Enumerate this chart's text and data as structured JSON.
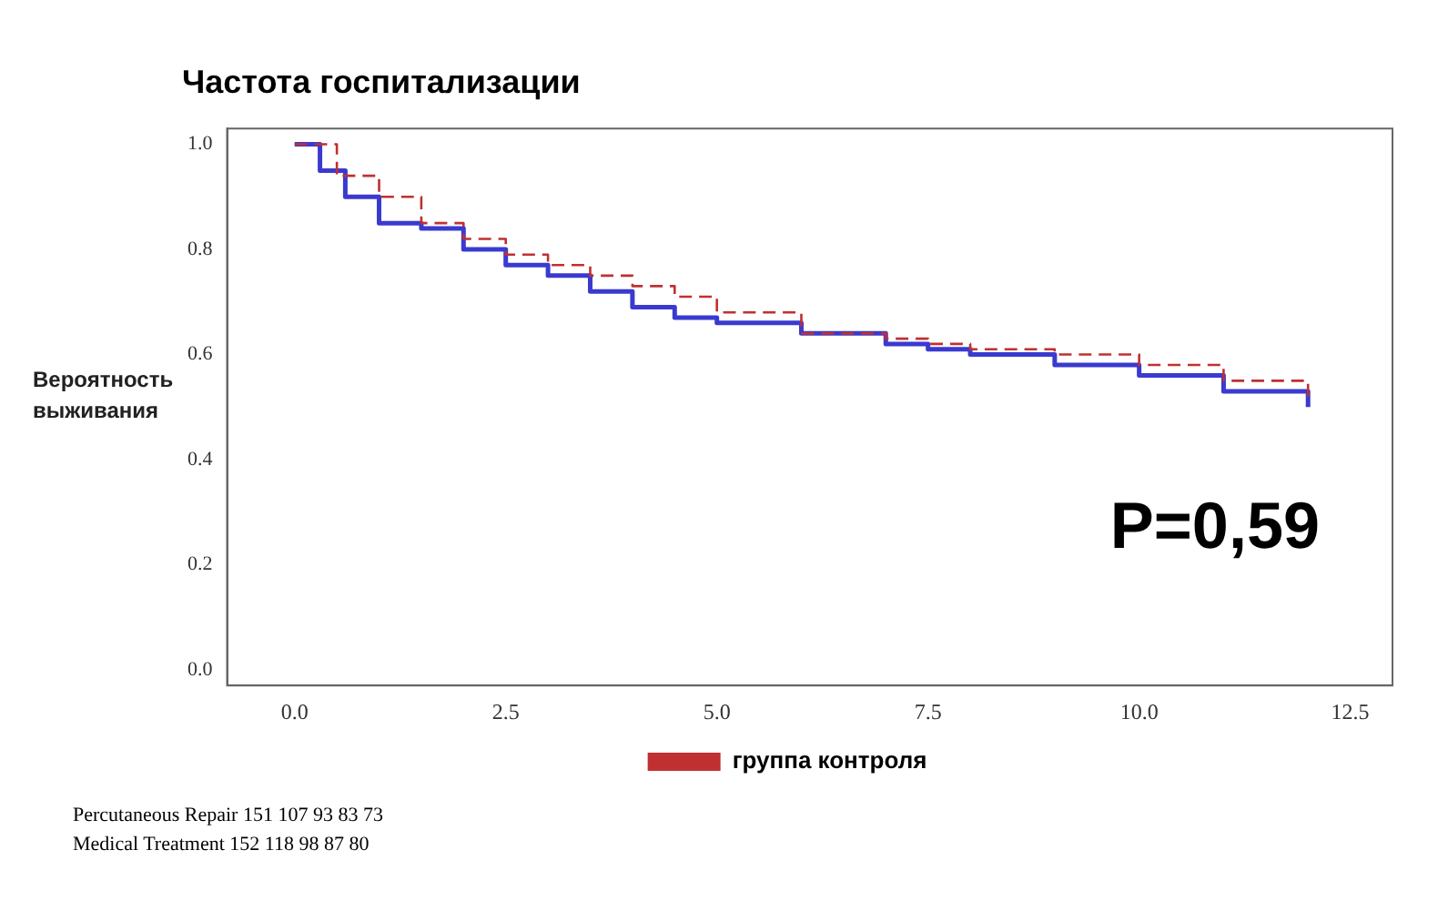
{
  "chart_data": {
    "type": "step",
    "title": "Частота госпитализации",
    "ylabel": "Вероятность выживания",
    "xlim": [
      -0.8,
      13
    ],
    "ylim": [
      -0.03,
      1.03
    ],
    "xticks": [
      {
        "value": 0,
        "label": "0.0"
      },
      {
        "value": 2.5,
        "label": "2.5"
      },
      {
        "value": 5,
        "label": "5.0"
      },
      {
        "value": 7.5,
        "label": "7.5"
      },
      {
        "value": 10,
        "label": "10.0"
      },
      {
        "value": 12.5,
        "label": "12.5"
      }
    ],
    "yticks": [
      {
        "value": 0,
        "label": "0.0"
      },
      {
        "value": 0.2,
        "label": "0.2"
      },
      {
        "value": 0.4,
        "label": "0.4"
      },
      {
        "value": 0.6,
        "label": "0.6"
      },
      {
        "value": 0.8,
        "label": "0.8"
      },
      {
        "value": 1,
        "label": "1.0"
      }
    ],
    "series": [
      {
        "color": "#3a3ad0",
        "line_style": "solid",
        "x": [
          0,
          0.3,
          0.6,
          1,
          1.5,
          2,
          2.5,
          3,
          3.5,
          4,
          4.5,
          5,
          6,
          7,
          7.5,
          8,
          9,
          10,
          11,
          12
        ],
        "values": [
          1,
          0.95,
          0.9,
          0.85,
          0.84,
          0.8,
          0.77,
          0.75,
          0.72,
          0.69,
          0.67,
          0.66,
          0.64,
          0.62,
          0.61,
          0.6,
          0.58,
          0.56,
          0.53,
          0.5
        ]
      },
      {
        "name": "группа контроля",
        "color": "#c03030",
        "line_style": "dashed",
        "x": [
          0,
          0.5,
          1,
          1.5,
          2,
          2.5,
          3,
          3.5,
          4,
          4.5,
          5,
          6,
          7,
          7.5,
          8,
          9,
          10,
          11,
          12
        ],
        "values": [
          1,
          0.94,
          0.9,
          0.85,
          0.82,
          0.79,
          0.77,
          0.75,
          0.73,
          0.71,
          0.68,
          0.64,
          0.63,
          0.62,
          0.61,
          0.6,
          0.58,
          0.55,
          0.52
        ]
      }
    ],
    "legend": "bottom",
    "grid": false,
    "marker": "none",
    "annotations": [
      "P=0,59",
      "Percutaneous Repair 151 107 93 83 73",
      "Medical Treatment 152 118 98 87 80"
    ]
  }
}
